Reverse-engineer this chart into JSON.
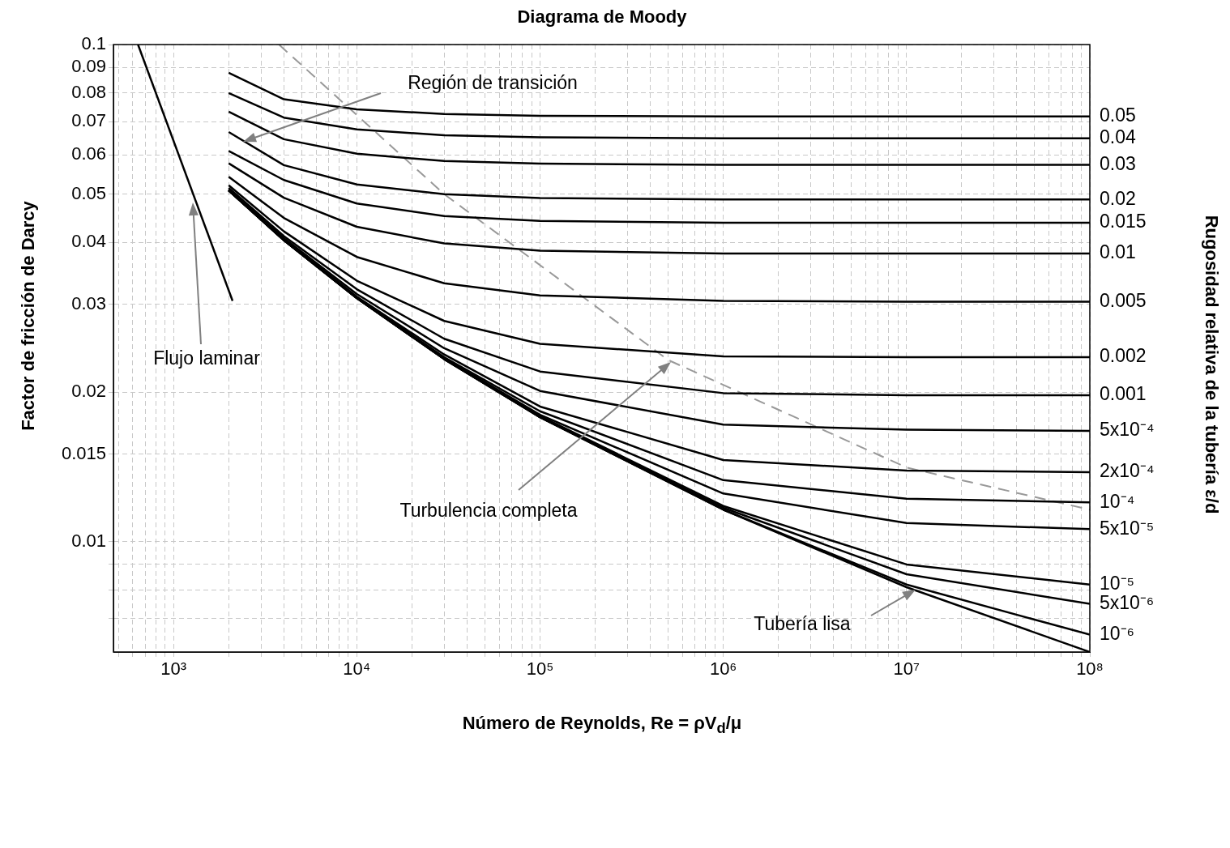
{
  "chart_data": {
    "type": "line",
    "title": "Diagrama de Moody",
    "xlabel": "Número de Reynolds, Re = ρV$_{d}$/μ",
    "ylabel": "Factor de fricción de Darcy",
    "log": "xy",
    "grid": true,
    "marker": "none",
    "line_style": "solid",
    "xlim": [
      470,
      100000000
    ],
    "ylim": [
      0.006,
      0.1
    ],
    "xticks": [
      {
        "value": 500,
        "label": null
      },
      {
        "value": 600,
        "label": null
      },
      {
        "value": 700,
        "label": null
      },
      {
        "value": 800,
        "label": null
      },
      {
        "value": 900,
        "label": null
      },
      {
        "value": 1000,
        "label": "10³"
      },
      {
        "value": 2000,
        "label": null
      },
      {
        "value": 3000,
        "label": null
      },
      {
        "value": 4000,
        "label": null
      },
      {
        "value": 5000,
        "label": null
      },
      {
        "value": 6000,
        "label": null
      },
      {
        "value": 7000,
        "label": null
      },
      {
        "value": 8000,
        "label": null
      },
      {
        "value": 9000,
        "label": null
      },
      {
        "value": 10000,
        "label": "10⁴"
      },
      {
        "value": 20000,
        "label": null
      },
      {
        "value": 30000,
        "label": null
      },
      {
        "value": 40000,
        "label": null
      },
      {
        "value": 50000,
        "label": null
      },
      {
        "value": 60000,
        "label": null
      },
      {
        "value": 70000,
        "label": null
      },
      {
        "value": 80000,
        "label": null
      },
      {
        "value": 90000,
        "label": null
      },
      {
        "value": 100000,
        "label": "10⁵"
      },
      {
        "value": 200000,
        "label": null
      },
      {
        "value": 300000,
        "label": null
      },
      {
        "value": 400000,
        "label": null
      },
      {
        "value": 500000,
        "label": null
      },
      {
        "value": 600000,
        "label": null
      },
      {
        "value": 700000,
        "label": null
      },
      {
        "value": 800000,
        "label": null
      },
      {
        "value": 900000,
        "label": null
      },
      {
        "value": 1000000,
        "label": "10⁶"
      },
      {
        "value": 2000000,
        "label": null
      },
      {
        "value": 3000000,
        "label": null
      },
      {
        "value": 4000000,
        "label": null
      },
      {
        "value": 5000000,
        "label": null
      },
      {
        "value": 6000000,
        "label": null
      },
      {
        "value": 7000000,
        "label": null
      },
      {
        "value": 8000000,
        "label": null
      },
      {
        "value": 9000000,
        "label": null
      },
      {
        "value": 10000000,
        "label": "10⁷"
      },
      {
        "value": 20000000,
        "label": null
      },
      {
        "value": 30000000,
        "label": null
      },
      {
        "value": 40000000,
        "label": null
      },
      {
        "value": 50000000,
        "label": null
      },
      {
        "value": 60000000,
        "label": null
      },
      {
        "value": 70000000,
        "label": null
      },
      {
        "value": 80000000,
        "label": null
      },
      {
        "value": 90000000,
        "label": null
      },
      {
        "value": 100000000,
        "label": "10⁸"
      }
    ],
    "yticks": [
      {
        "value": 0.007,
        "label": null
      },
      {
        "value": 0.008,
        "label": null
      },
      {
        "value": 0.009,
        "label": null
      },
      0.01,
      0.015,
      0.02,
      0.03,
      0.04,
      0.05,
      0.06,
      0.07,
      0.08,
      0.09,
      0.1
    ],
    "x": [
      2000,
      4000,
      10000,
      30000,
      100000,
      1000000,
      10000000,
      100000000
    ],
    "series": [
      {
        "name": "0.05",
        "color": "#000000",
        "values": [
          0.0877,
          0.0776,
          0.0741,
          0.0725,
          0.0719,
          0.0717,
          0.0717,
          0.0717
        ]
      },
      {
        "name": "0.04",
        "color": "#000000",
        "values": [
          0.0799,
          0.0713,
          0.0675,
          0.0657,
          0.0651,
          0.0648,
          0.0648,
          0.0648
        ]
      },
      {
        "name": "0.03",
        "color": "#000000",
        "values": [
          0.0733,
          0.0645,
          0.0603,
          0.0583,
          0.0576,
          0.0573,
          0.0573,
          0.0573
        ]
      },
      {
        "name": "0.02",
        "color": "#000000",
        "values": [
          0.0667,
          0.0572,
          0.0523,
          0.05,
          0.0491,
          0.0488,
          0.0488,
          0.0488
        ]
      },
      {
        "name": "0.015",
        "color": "#000000",
        "values": [
          0.0611,
          0.0534,
          0.0479,
          0.0452,
          0.0442,
          0.0438,
          0.0438,
          0.0438
        ]
      },
      {
        "name": "0.01",
        "color": "#000000",
        "values": [
          0.0577,
          0.0492,
          0.043,
          0.0398,
          0.0385,
          0.038,
          0.038,
          0.038
        ]
      },
      {
        "name": "0.005",
        "color": "#000000",
        "values": [
          0.0542,
          0.0448,
          0.0374,
          0.0331,
          0.0313,
          0.0305,
          0.0304,
          0.0304
        ]
      },
      {
        "name": "0.002",
        "color": "#000000",
        "values": [
          0.0521,
          0.0421,
          0.0335,
          0.0278,
          0.025,
          0.0236,
          0.0235,
          0.0235
        ]
      },
      {
        "name": "0.001",
        "color": "#000000",
        "values": [
          0.0515,
          0.0412,
          0.0322,
          0.0256,
          0.022,
          0.0199,
          0.0197,
          0.0197
        ]
      },
      {
        "name": "5x10⁻⁴",
        "color": "#000000",
        "values": [
          0.0512,
          0.0408,
          0.0315,
          0.0245,
          0.0201,
          0.0172,
          0.0168,
          0.0167
        ]
      },
      {
        "name": "2x10⁻⁴",
        "color": "#000000",
        "values": [
          0.051,
          0.0406,
          0.0311,
          0.0238,
          0.0187,
          0.0146,
          0.0139,
          0.0138
        ]
      },
      {
        "name": "10⁻⁴",
        "color": "#000000",
        "values": [
          0.0509,
          0.0405,
          0.031,
          0.0235,
          0.0183,
          0.0133,
          0.0122,
          0.012
        ]
      },
      {
        "name": "5x10⁻⁵",
        "color": "#000000",
        "values": [
          0.0509,
          0.0404,
          0.0309,
          0.0234,
          0.018,
          0.0125,
          0.0109,
          0.0106
        ]
      },
      {
        "name": "10⁻⁵",
        "color": "#000000",
        "values": [
          0.0509,
          0.0404,
          0.0309,
          0.0233,
          0.0179,
          0.0118,
          0.009,
          0.0082
        ]
      },
      {
        "name": "5x10⁻⁶",
        "color": "#000000",
        "values": [
          0.0509,
          0.0404,
          0.0309,
          0.0233,
          0.0178,
          0.0117,
          0.0086,
          0.0075
        ]
      },
      {
        "name": "10⁻⁶",
        "color": "#000000",
        "values": [
          0.0509,
          0.0404,
          0.0309,
          0.0233,
          0.0178,
          0.0116,
          0.0082,
          0.0065
        ]
      },
      {
        "color": "#000000",
        "values": [
          0.0509,
          0.0404,
          0.0309,
          0.0233,
          0.0178,
          0.0116,
          0.0081,
          0.006
        ]
      },
      {
        "color": "#000000",
        "x": [
          640,
          2100
        ],
        "values": [
          0.1,
          0.0305
        ]
      },
      {
        "color": "#999999",
        "line_style": "dashed",
        "x": [
          3760,
          30000,
          500000,
          10000000,
          100000000
        ],
        "values": [
          0.1,
          0.05,
          0.0232,
          0.0141,
          0.0116
        ]
      }
    ],
    "annotations": [
      "Región de transición",
      "Flujo laminar",
      "Turbulencia completa",
      "Tubería lisa",
      "Rugosidad relativa de la tubería ε/d"
    ]
  }
}
